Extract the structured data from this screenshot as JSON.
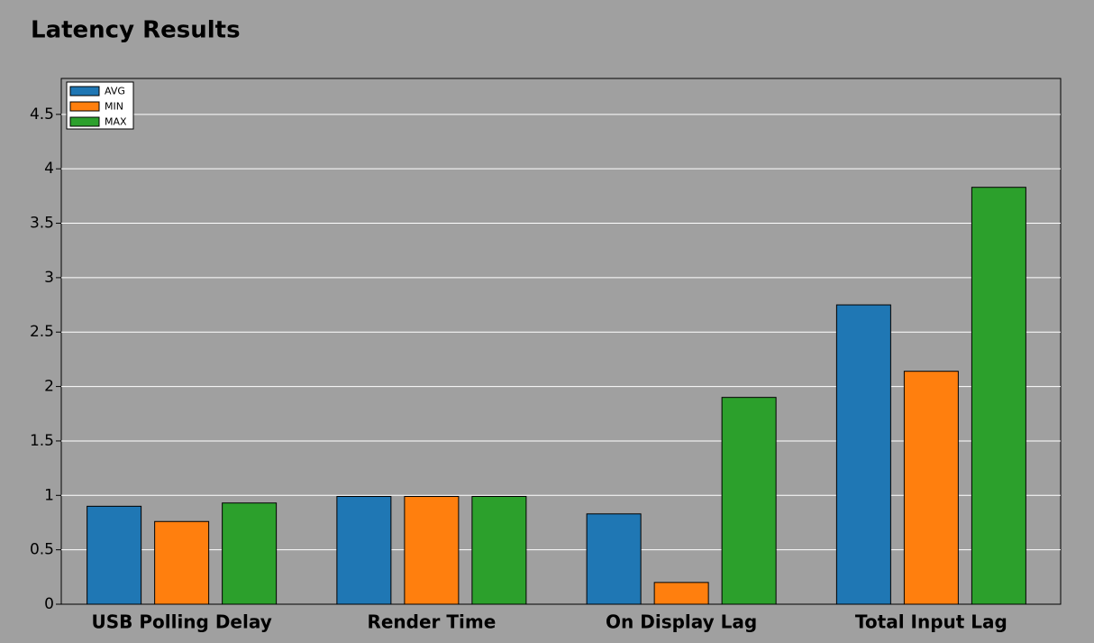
{
  "chart_data": {
    "type": "bar",
    "title": "Latency Results",
    "categories": [
      "USB Polling Delay",
      "Render Time",
      "On Display Lag",
      "Total Input Lag"
    ],
    "series": [
      {
        "name": "AVG",
        "color": "#1f77b4",
        "values": [
          0.9,
          0.99,
          0.83,
          2.75
        ]
      },
      {
        "name": "MIN",
        "color": "#ff7f0e",
        "values": [
          0.76,
          0.99,
          0.2,
          2.14
        ]
      },
      {
        "name": "MAX",
        "color": "#2ca02c",
        "values": [
          0.93,
          0.99,
          1.9,
          3.83
        ]
      }
    ],
    "ylim": [
      0,
      4.83
    ],
    "yticks": [
      0,
      0.5,
      1,
      1.5,
      2,
      2.5,
      3,
      3.5,
      4,
      4.5
    ],
    "grid": true,
    "legend": "upper-left"
  }
}
